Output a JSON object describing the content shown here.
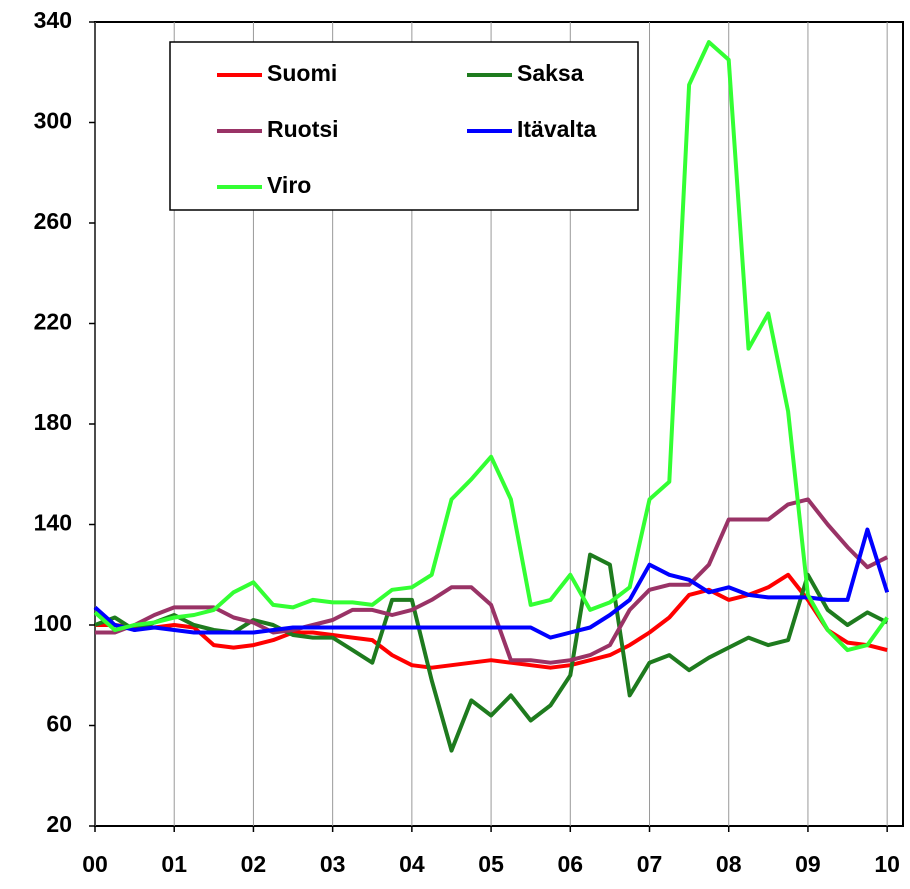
{
  "chart_data": {
    "type": "line",
    "x": [
      0,
      0.25,
      0.5,
      0.75,
      1,
      1.25,
      1.5,
      1.75,
      2,
      2.25,
      2.5,
      2.75,
      3,
      3.25,
      3.5,
      3.75,
      4,
      4.25,
      4.5,
      4.75,
      5,
      5.25,
      5.5,
      5.75,
      6,
      6.25,
      6.5,
      6.75,
      7,
      7.25,
      7.5,
      7.75,
      8,
      8.25,
      8.5,
      8.75,
      9,
      9.25,
      9.5,
      9.75,
      10
    ],
    "series": [
      {
        "name": "Suomi",
        "color": "#ff0000",
        "values": [
          100,
          100,
          99,
          99,
          100,
          99,
          92,
          91,
          92,
          94,
          97,
          97,
          96,
          95,
          94,
          88,
          84,
          83,
          84,
          85,
          86,
          85,
          84,
          83,
          84,
          86,
          88,
          92,
          97,
          103,
          112,
          114,
          110,
          112,
          115,
          120,
          110,
          98,
          93,
          92,
          90
        ]
      },
      {
        "name": "Saksa",
        "color": "#1e7b1e",
        "values": [
          100,
          103,
          98,
          101,
          104,
          100,
          98,
          97,
          102,
          100,
          96,
          95,
          95,
          90,
          85,
          110,
          110,
          78,
          50,
          70,
          64,
          72,
          62,
          68,
          80,
          128,
          124,
          72,
          85,
          88,
          82,
          87,
          91,
          95,
          92,
          94,
          120,
          106,
          100,
          105,
          101
        ]
      },
      {
        "name": "Ruotsi",
        "color": "#993366",
        "values": [
          97,
          97,
          100,
          104,
          107,
          107,
          107,
          103,
          101,
          97,
          98,
          100,
          102,
          106,
          106,
          104,
          106,
          110,
          115,
          115,
          108,
          86,
          86,
          85,
          86,
          88,
          92,
          106,
          114,
          116,
          116,
          124,
          142,
          142,
          142,
          148,
          150,
          140,
          131,
          123,
          127
        ]
      },
      {
        "name": "Itävalta",
        "color": "#0000ff",
        "values": [
          107,
          100,
          98,
          99,
          98,
          97,
          97,
          97,
          97,
          98,
          99,
          99,
          99,
          99,
          99,
          99,
          99,
          99,
          99,
          99,
          99,
          99,
          99,
          95,
          97,
          99,
          104,
          110,
          124,
          120,
          118,
          113,
          115,
          112,
          111,
          111,
          111,
          110,
          110,
          138,
          113
        ]
      },
      {
        "name": "Viro",
        "color": "#33ff33",
        "values": [
          105,
          98,
          100,
          101,
          103,
          104,
          106,
          113,
          117,
          108,
          107,
          110,
          109,
          109,
          108,
          114,
          115,
          120,
          150,
          158,
          167,
          150,
          108,
          110,
          120,
          106,
          109,
          115,
          150,
          157,
          315,
          332,
          325,
          210,
          224,
          185,
          112,
          98,
          90,
          92,
          103
        ]
      }
    ],
    "xlim": [
      0,
      10.2
    ],
    "xticks": [
      {
        "value": 0,
        "label": "00"
      },
      {
        "value": 1,
        "label": "01"
      },
      {
        "value": 2,
        "label": "02"
      },
      {
        "value": 3,
        "label": "03"
      },
      {
        "value": 4,
        "label": "04"
      },
      {
        "value": 5,
        "label": "05"
      },
      {
        "value": 6,
        "label": "06"
      },
      {
        "value": 7,
        "label": "07"
      },
      {
        "value": 8,
        "label": "08"
      },
      {
        "value": 9,
        "label": "09"
      },
      10
    ],
    "ylim": [
      20,
      340
    ],
    "yticks": [
      20,
      60,
      100,
      140,
      180,
      220,
      260,
      300,
      340
    ],
    "grid": "x"
  }
}
